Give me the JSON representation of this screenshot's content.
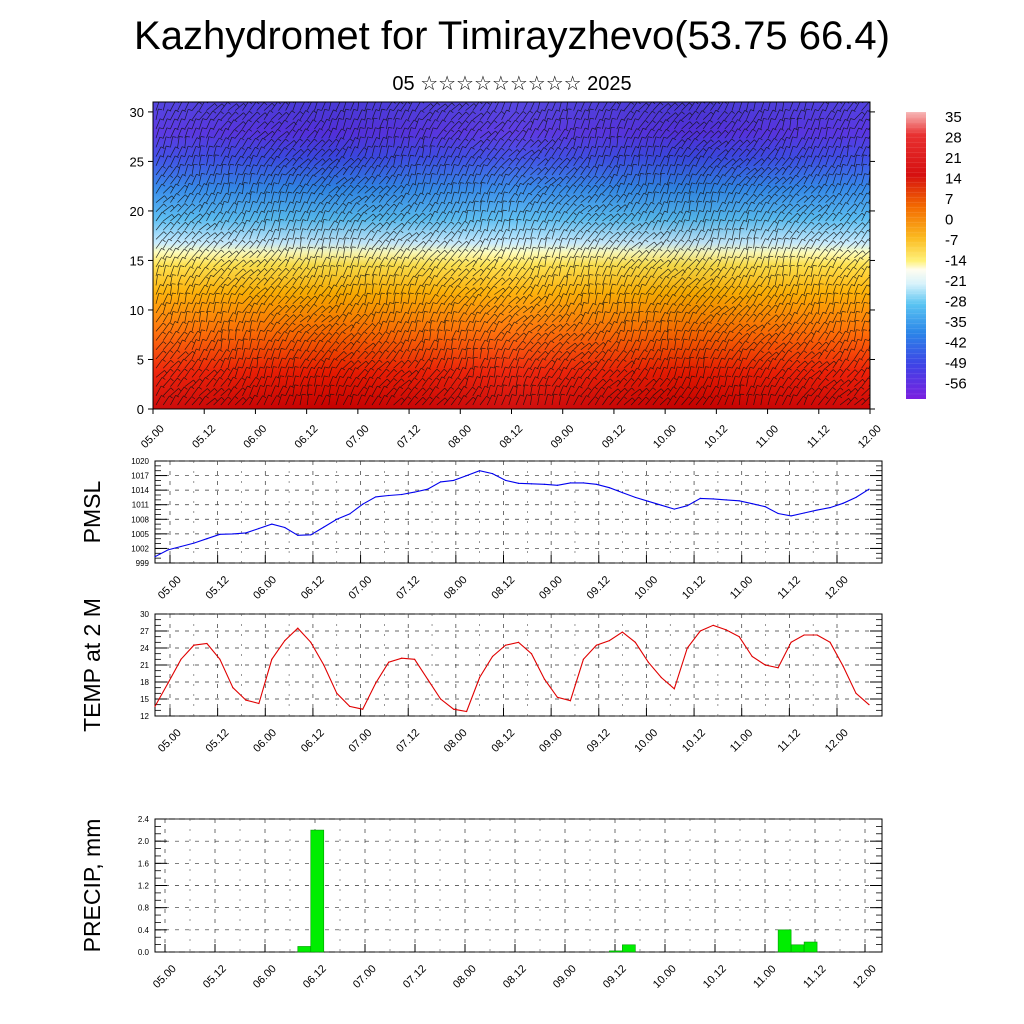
{
  "title": "Kazhydromet for Timirayzhevo(53.75 66.4)",
  "subtitle": "05 ☆☆☆☆☆☆☆☆☆ 2025",
  "colors": {
    "pmsl_line": "#0000ee",
    "temp_line": "#e00000",
    "precip_bar": "#00ee00",
    "precip_bar_edge": "#009900",
    "cross_section_cold": "#7a1fe0",
    "cross_section_mid": "#ffff99",
    "cross_section_warm": "#d40000"
  },
  "chart_data": [
    {
      "type": "heatmap",
      "name": "time-height cross section",
      "x_ticks": [
        "05.00",
        "05.12",
        "06.00",
        "06.12",
        "07.00",
        "07.12",
        "08.00",
        "08.12",
        "09.00",
        "09.12",
        "10.00",
        "10.12",
        "11.00",
        "11.12",
        "12.00"
      ],
      "y_ticks": [
        "0",
        "5",
        "10",
        "15",
        "20",
        "25",
        "30"
      ],
      "ylim": [
        0,
        31
      ],
      "colorbar_labels": [
        "35",
        "28",
        "21",
        "14",
        "7",
        "0",
        "-7",
        "-14",
        "-21",
        "-28",
        "-35",
        "-42",
        "-49",
        "-56"
      ],
      "overlay": "wind barbs"
    },
    {
      "type": "line",
      "ylabel": "PMSL",
      "ylim": [
        999,
        1020
      ],
      "y_ticks": [
        "1020",
        "1017",
        "1014",
        "1011",
        "1008",
        "1005",
        "1002",
        "999"
      ],
      "x_ticks": [
        "05.00",
        "05.12",
        "06.00",
        "06.12",
        "07.00",
        "07.12",
        "08.00",
        "08.12",
        "09.00",
        "09.12",
        "10.00",
        "10.12",
        "11.00",
        "11.12",
        "12.00"
      ],
      "x": [
        0,
        3,
        6,
        9,
        12,
        15,
        18,
        21,
        24,
        27,
        30,
        33,
        36,
        39,
        42,
        45,
        48,
        51,
        54,
        57,
        60,
        63,
        66,
        69,
        72,
        75,
        78,
        81,
        84,
        87,
        90,
        93,
        96,
        99,
        102,
        105,
        108,
        111,
        114,
        117,
        120,
        123,
        126,
        129,
        132,
        135,
        138,
        141,
        144,
        147,
        150,
        153,
        156,
        159,
        162,
        165
      ],
      "values": [
        1000.3,
        1001.7,
        1002.4,
        1003.1,
        1004.0,
        1004.9,
        1005.0,
        1005.2,
        1006.1,
        1007.0,
        1006.3,
        1004.7,
        1004.8,
        1006.4,
        1008.0,
        1009.1,
        1011.1,
        1012.6,
        1012.9,
        1013.1,
        1013.6,
        1014.2,
        1015.7,
        1016.0,
        1017.0,
        1018.0,
        1017.4,
        1016.0,
        1015.4,
        1015.3,
        1015.2,
        1015.0,
        1015.5,
        1015.5,
        1015.2,
        1014.5,
        1013.5,
        1012.5,
        1011.7,
        1010.9,
        1010.1,
        1010.8,
        1012.3,
        1012.2,
        1012.0,
        1011.8,
        1011.2,
        1010.6,
        1009.2,
        1008.7,
        1009.3,
        1009.9,
        1010.4,
        1011.3,
        1012.5,
        1014.2
      ]
    },
    {
      "type": "line",
      "ylabel": "TEMP at 2 M",
      "ylim": [
        12,
        30
      ],
      "y_ticks": [
        "30",
        "27",
        "24",
        "21",
        "18",
        "15",
        "12"
      ],
      "x_ticks": [
        "05.00",
        "05.12",
        "06.00",
        "06.12",
        "07.00",
        "07.12",
        "08.00",
        "08.12",
        "09.00",
        "09.12",
        "10.00",
        "10.12",
        "11.00",
        "11.12",
        "12.00"
      ],
      "x": [
        0,
        3,
        6,
        9,
        12,
        15,
        18,
        21,
        24,
        27,
        30,
        33,
        36,
        39,
        42,
        45,
        48,
        51,
        54,
        57,
        60,
        63,
        66,
        69,
        72,
        75,
        78,
        81,
        84,
        87,
        90,
        93,
        96,
        99,
        102,
        105,
        108,
        111,
        114,
        117,
        120,
        123,
        126,
        129,
        132,
        135,
        138,
        141,
        144,
        147,
        150,
        153,
        156,
        159,
        162,
        165
      ],
      "values": [
        13.7,
        17.8,
        22.0,
        24.5,
        24.8,
        22.0,
        17.0,
        14.8,
        14.2,
        22.0,
        25.3,
        27.5,
        25.0,
        21.0,
        16.0,
        13.7,
        13.2,
        17.8,
        21.5,
        22.2,
        22.0,
        18.5,
        15.0,
        13.2,
        12.8,
        18.8,
        22.5,
        24.5,
        25.0,
        23.0,
        18.5,
        15.3,
        14.7,
        22.0,
        24.5,
        25.3,
        26.8,
        25.0,
        21.5,
        18.8,
        16.8,
        24.0,
        27.0,
        28.0,
        27.2,
        26.0,
        22.5,
        21.0,
        20.5,
        25.0,
        26.3,
        26.3,
        25.0,
        20.8,
        16.0,
        14.0
      ]
    },
    {
      "type": "bar",
      "ylabel": "PRECIP, mm",
      "ylim": [
        0,
        2.4
      ],
      "y_ticks": [
        "2.4",
        "2.0",
        "1.6",
        "1.2",
        "0.8",
        "0.4",
        "0.0"
      ],
      "x_ticks": [
        "05.00",
        "05.12",
        "06.00",
        "06.12",
        "07.00",
        "07.12",
        "08.00",
        "08.12",
        "09.00",
        "09.12",
        "10.00",
        "10.12",
        "11.00",
        "11.12",
        "12.00"
      ],
      "x": [
        33,
        36,
        105,
        108,
        144,
        147,
        150
      ],
      "values": [
        0.1,
        2.2,
        0.02,
        0.13,
        0.4,
        0.13,
        0.18
      ]
    }
  ]
}
